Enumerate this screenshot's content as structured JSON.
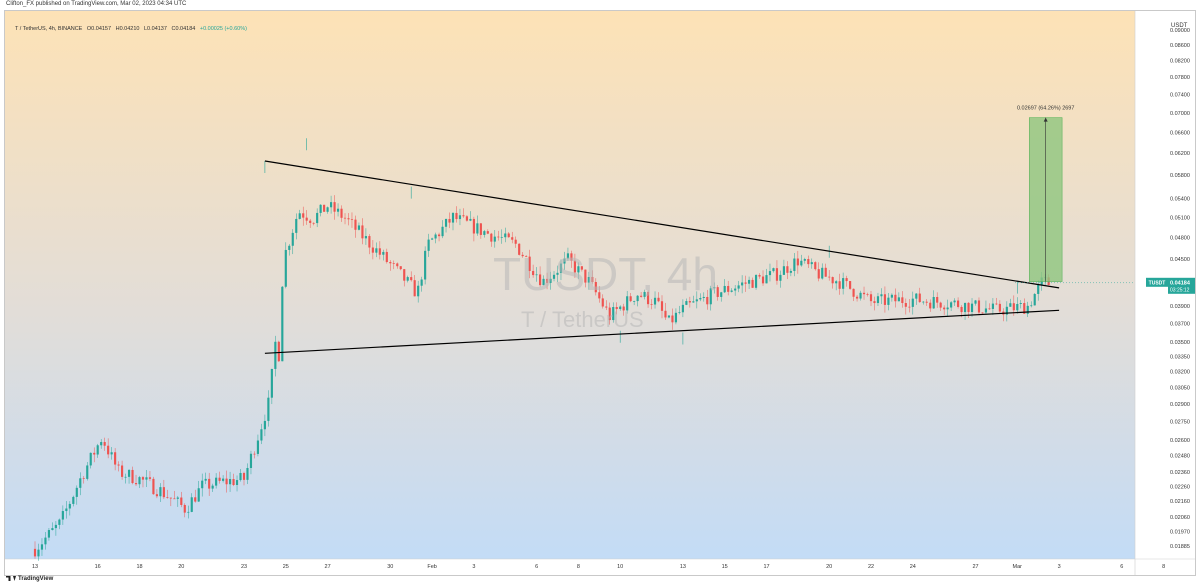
{
  "header": {
    "published_by": "Clifton_FX published on TradingView.com, Mar 02, 2023 04:34 UTC"
  },
  "legend": {
    "symbol": "T / TetherUS, 4h, BINANCE",
    "open": "O0.04157",
    "high": "H0.04210",
    "low": "L0.04137",
    "close": "C0.04184",
    "change": "+0.00025 (+0.60%)"
  },
  "watermark": {
    "ticker": "TUSDT, 4h",
    "pair": "T / TetherUS"
  },
  "price_axis": {
    "currency": "USDT",
    "labels": [
      "0.09000",
      "0.08600",
      "0.08200",
      "0.07800",
      "0.07400",
      "0.07000",
      "0.06600",
      "0.06200",
      "0.05800",
      "0.05400",
      "0.05100",
      "0.04800",
      "0.04500",
      "0.04200",
      "0.03900",
      "0.03700",
      "0.03500",
      "0.03350",
      "0.03200",
      "0.03050",
      "0.02900",
      "0.02750",
      "0.02600",
      "0.02480",
      "0.02360",
      "0.02260",
      "0.02160",
      "0.02060",
      "0.01970",
      "0.01885"
    ]
  },
  "time_axis": {
    "labels": [
      "13",
      "16",
      "18",
      "20",
      "23",
      "25",
      "27",
      "30",
      "Feb",
      "3",
      "6",
      "8",
      "10",
      "13",
      "15",
      "17",
      "20",
      "22",
      "24",
      "27",
      "Mar",
      "3",
      "6",
      "8"
    ]
  },
  "price_tag": {
    "symbol": "TUSDT",
    "price": "0.04184",
    "countdown": "03:25:12"
  },
  "measure": {
    "label": "0.02697 (64.26%) 2697"
  },
  "footer": {
    "brand": "TradingView"
  },
  "colors": {
    "up": "#26a69a",
    "down": "#ef5350",
    "bg_top": "#fde2b6",
    "bg_bottom": "#c3dcf6",
    "target_box": "#8fc57e"
  },
  "chart_data": {
    "type": "candlestick",
    "symbol": "T / TetherUS",
    "timeframe": "4h",
    "exchange": "BINANCE",
    "y_scale": "log",
    "ylim": [
      0.0183,
      0.093
    ],
    "last_price": 0.04184,
    "key_levels": [
      {
        "date": "2023-01-24",
        "price": 0.0605
      },
      {
        "date": "2023-01-26",
        "price": 0.0648
      },
      {
        "date": "2023-01-31",
        "price": 0.056
      },
      {
        "date": "2023-02-10",
        "price": 0.0362
      },
      {
        "date": "2023-02-13",
        "price": 0.036
      },
      {
        "date": "2023-02-20",
        "price": 0.0468
      },
      {
        "date": "2023-03-01",
        "price": 0.042
      }
    ],
    "trendlines": [
      {
        "name": "upper",
        "from": {
          "date": "2023-01-24",
          "price": 0.0605
        },
        "to": {
          "date": "2023-03-03",
          "price": 0.0412
        }
      },
      {
        "name": "lower",
        "from": {
          "date": "2023-01-24",
          "price": 0.0338
        },
        "to": {
          "date": "2023-03-03",
          "price": 0.0385
        }
      }
    ],
    "target": {
      "from_price": 0.042,
      "to_price": 0.069,
      "change": 0.02697,
      "change_pct": 64.26
    }
  }
}
